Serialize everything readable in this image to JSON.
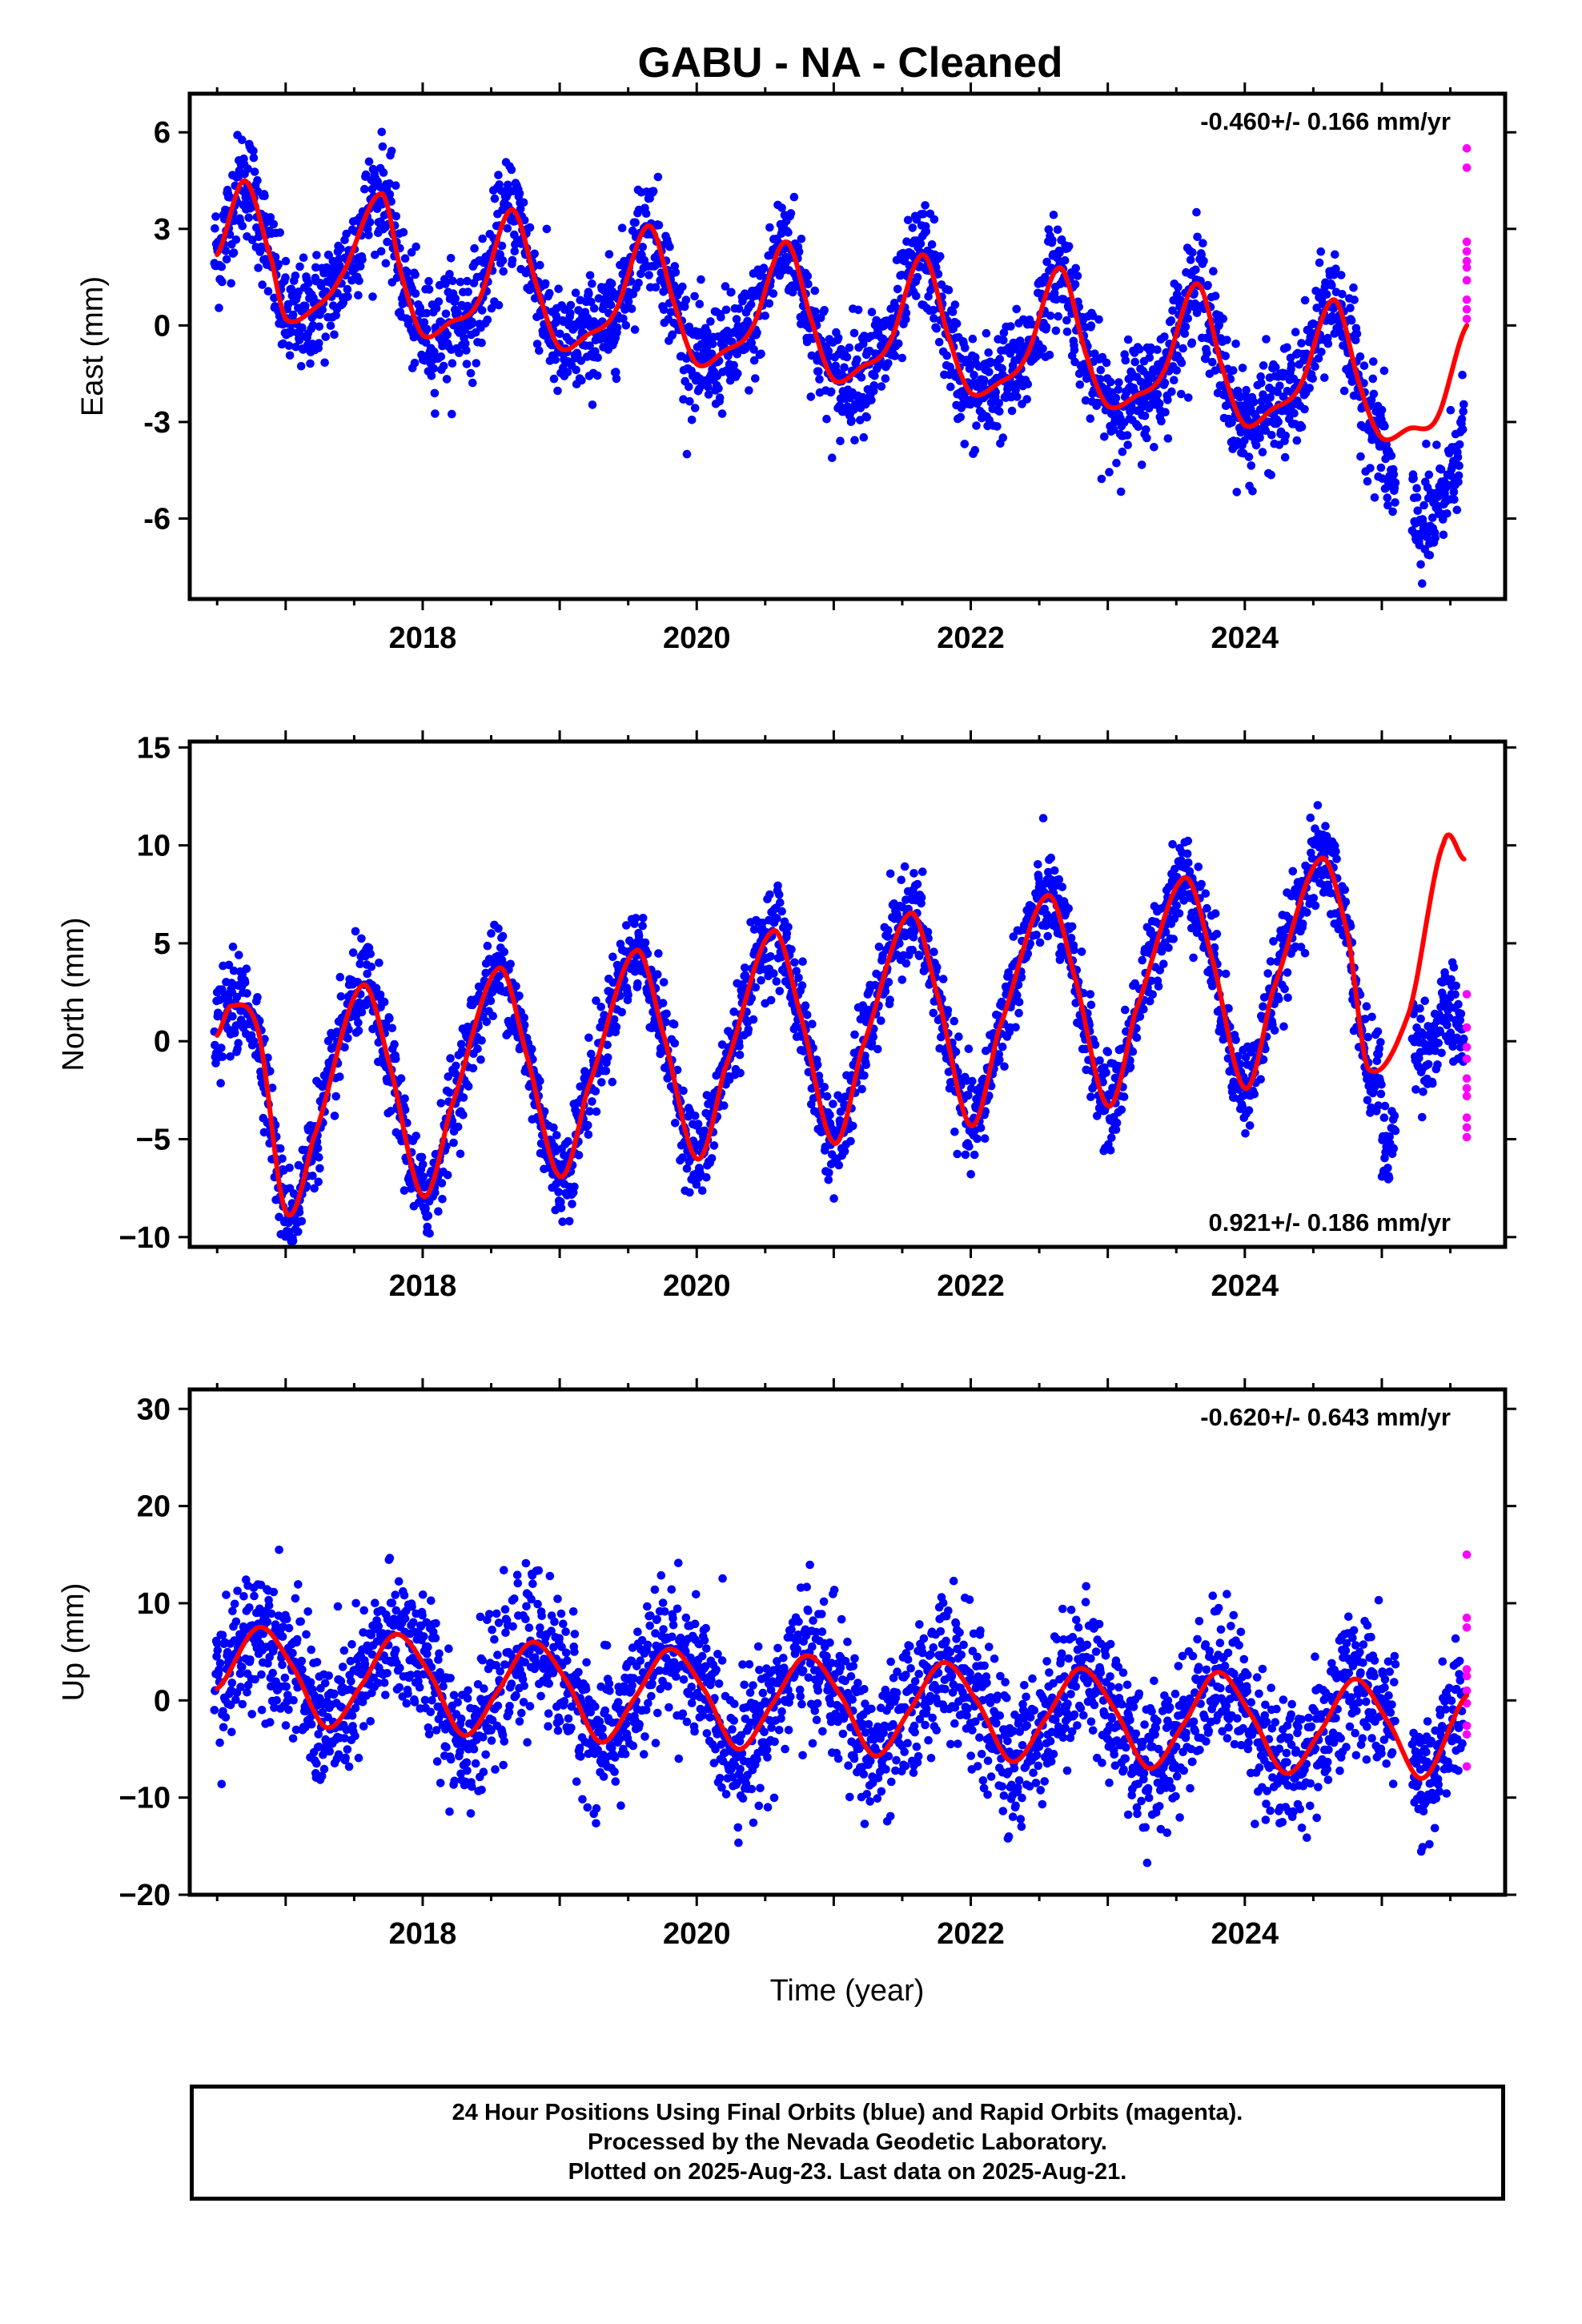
{
  "title": "GABU  - NA - Cleaned",
  "x_axis_label": "Time (year)",
  "footer": {
    "line1": "24 Hour Positions Using Final Orbits (blue) and Rapid Orbits (magenta).",
    "line2": "Processed by the Nevada Geodetic Laboratory.",
    "line3": "Plotted on 2025-Aug-23. Last data on 2025-Aug-21."
  },
  "colors": {
    "final_orbits": "#0000ff",
    "rapid_orbits": "#ff00ff",
    "model_fit": "#ff0000"
  },
  "chart_data": [
    {
      "type": "scatter",
      "ylabel": "East (mm)",
      "rate_label": "-0.460+/- 0.166 mm/yr",
      "rate_label_position": "top-right",
      "xlim": [
        2016.3,
        2025.9
      ],
      "ylim": [
        -8.5,
        7.2
      ],
      "x_ticks": [
        2018,
        2020,
        2022,
        2024
      ],
      "y_ticks": [
        -6,
        -3,
        0,
        3,
        6
      ],
      "y_tick_labels": [
        "-6",
        "-3",
        "0",
        "3",
        "6"
      ],
      "series": [
        {
          "name": "Final Orbits",
          "color": "#0000ff",
          "kind": "points",
          "note": "daily positions scattered about the model fit"
        },
        {
          "name": "Rapid Orbits",
          "color": "#ff00ff",
          "kind": "points",
          "x": [
            2025.62,
            2025.62,
            2025.62,
            2025.62,
            2025.62,
            2025.62,
            2025.62,
            2025.62,
            2025.62,
            2025.62
          ],
          "y": [
            5.5,
            4.9,
            2.6,
            2.3,
            1.8,
            1.4,
            0.8,
            0.5,
            0.2,
            2.0
          ]
        },
        {
          "name": "Model Fit",
          "color": "#ff0000",
          "kind": "line",
          "x": [
            2016.5,
            2016.7,
            2016.9,
            2017.0,
            2017.2,
            2017.4,
            2017.7,
            2017.85,
            2018.0,
            2018.2,
            2018.4,
            2018.65,
            2018.85,
            2019.0,
            2019.2,
            2019.4,
            2019.65,
            2019.85,
            2020.0,
            2020.2,
            2020.4,
            2020.65,
            2020.85,
            2021.0,
            2021.2,
            2021.4,
            2021.65,
            2021.85,
            2022.0,
            2022.2,
            2022.4,
            2022.65,
            2022.85,
            2023.0,
            2023.2,
            2023.4,
            2023.65,
            2023.85,
            2024.0,
            2024.2,
            2024.4,
            2024.65,
            2024.85,
            2025.0,
            2025.2,
            2025.4,
            2025.62
          ],
          "y": [
            2.2,
            4.5,
            2.0,
            0.2,
            0.5,
            1.5,
            4.1,
            1.5,
            -0.3,
            0.1,
            0.7,
            3.6,
            1.0,
            -0.7,
            -0.3,
            0.4,
            3.1,
            0.5,
            -1.2,
            -0.8,
            -0.1,
            2.6,
            0.0,
            -1.7,
            -1.3,
            -0.6,
            2.2,
            -0.5,
            -2.1,
            -1.8,
            -1.0,
            1.8,
            -1.0,
            -2.5,
            -2.2,
            -1.5,
            1.3,
            -1.5,
            -3.1,
            -2.6,
            -1.9,
            0.8,
            -2.0,
            -3.5,
            -3.2,
            -2.9,
            0.0
          ]
        }
      ]
    },
    {
      "type": "scatter",
      "ylabel": "North (mm)",
      "rate_label": "0.921+/- 0.186 mm/yr",
      "rate_label_position": "bottom-right",
      "xlim": [
        2016.3,
        2025.9
      ],
      "ylim": [
        -10.5,
        15.3
      ],
      "x_ticks": [
        2018,
        2020,
        2022,
        2024
      ],
      "y_ticks": [
        -10,
        -5,
        0,
        5,
        10,
        15
      ],
      "y_tick_labels": [
        "−10",
        "−5",
        "0",
        "5",
        "10",
        "15"
      ],
      "series": [
        {
          "name": "Final Orbits",
          "color": "#0000ff",
          "kind": "points",
          "note": "daily positions scattered about the model fit"
        },
        {
          "name": "Rapid Orbits",
          "color": "#ff00ff",
          "kind": "points",
          "x": [
            2025.62,
            2025.62,
            2025.62,
            2025.62,
            2025.62,
            2025.62,
            2025.62,
            2025.62,
            2025.62,
            2025.62
          ],
          "y": [
            2.4,
            0.7,
            -0.9,
            -1.9,
            -2.4,
            -2.8,
            -3.9,
            -4.4,
            -4.9,
            -0.3
          ]
        },
        {
          "name": "Model Fit",
          "color": "#ff0000",
          "kind": "line",
          "x": [
            2016.5,
            2016.6,
            2016.8,
            2017.0,
            2017.2,
            2017.55,
            2017.75,
            2018.0,
            2018.2,
            2018.55,
            2018.75,
            2019.0,
            2019.2,
            2019.55,
            2019.75,
            2020.0,
            2020.2,
            2020.55,
            2020.75,
            2021.0,
            2021.2,
            2021.55,
            2021.75,
            2022.0,
            2022.2,
            2022.55,
            2022.75,
            2023.0,
            2023.2,
            2023.55,
            2023.75,
            2024.0,
            2024.2,
            2024.55,
            2024.75,
            2024.9,
            2025.2,
            2025.45,
            2025.6
          ],
          "y": [
            0.3,
            1.8,
            0.5,
            -8.7,
            -5.0,
            2.8,
            -1.0,
            -7.9,
            -3.5,
            3.7,
            -0.5,
            -6.9,
            -2.5,
            4.6,
            0.5,
            -6.0,
            -1.5,
            5.6,
            1.5,
            -5.2,
            -0.5,
            6.5,
            2.5,
            -4.3,
            0.5,
            7.4,
            3.5,
            -3.3,
            1.5,
            8.3,
            4.5,
            -2.4,
            2.5,
            9.3,
            5.5,
            -1.4,
            1.5,
            10.1,
            9.3
          ]
        }
      ]
    },
    {
      "type": "scatter",
      "ylabel": "Up (mm)",
      "rate_label": "-0.620+/- 0.643 mm/yr",
      "rate_label_position": "top-right",
      "xlim": [
        2016.3,
        2025.9
      ],
      "ylim": [
        -20,
        32
      ],
      "x_ticks": [
        2018,
        2020,
        2022,
        2024
      ],
      "y_ticks": [
        -20,
        -10,
        0,
        10,
        20,
        30
      ],
      "y_tick_labels": [
        "−20",
        "−10",
        "0",
        "10",
        "20",
        "30"
      ],
      "series": [
        {
          "name": "Final Orbits",
          "color": "#0000ff",
          "kind": "points",
          "note": "daily positions scattered about the model fit"
        },
        {
          "name": "Rapid Orbits",
          "color": "#ff00ff",
          "kind": "points",
          "x": [
            2025.62,
            2025.62,
            2025.62,
            2025.62,
            2025.62,
            2025.62,
            2025.62,
            2025.62,
            2025.62,
            2025.62
          ],
          "y": [
            15.0,
            8.5,
            7.5,
            3.2,
            2.5,
            -0.3,
            -2.6,
            -3.5,
            -6.8,
            1.0
          ]
        },
        {
          "name": "Model Fit",
          "color": "#ff0000",
          "kind": "line",
          "x": [
            2016.5,
            2016.8,
            2017.05,
            2017.3,
            2017.55,
            2017.8,
            2018.05,
            2018.3,
            2018.55,
            2018.8,
            2019.05,
            2019.3,
            2019.55,
            2019.8,
            2020.05,
            2020.3,
            2020.55,
            2020.8,
            2021.05,
            2021.3,
            2021.55,
            2021.8,
            2022.05,
            2022.3,
            2022.55,
            2022.8,
            2023.05,
            2023.3,
            2023.55,
            2023.8,
            2024.05,
            2024.3,
            2024.55,
            2024.8,
            2025.05,
            2025.3,
            2025.62
          ],
          "y": [
            1.2,
            7.5,
            3.5,
            -2.8,
            1.5,
            6.8,
            2.8,
            -3.6,
            1.0,
            6.0,
            2.0,
            -4.3,
            0.3,
            5.3,
            1.2,
            -5.0,
            -0.4,
            4.6,
            0.5,
            -5.7,
            -1.1,
            3.9,
            -0.2,
            -6.3,
            -1.8,
            3.3,
            -0.9,
            -7.0,
            -2.5,
            2.9,
            -1.6,
            -7.5,
            -3.2,
            2.2,
            -2.3,
            -8.0,
            0.5
          ]
        }
      ]
    }
  ]
}
